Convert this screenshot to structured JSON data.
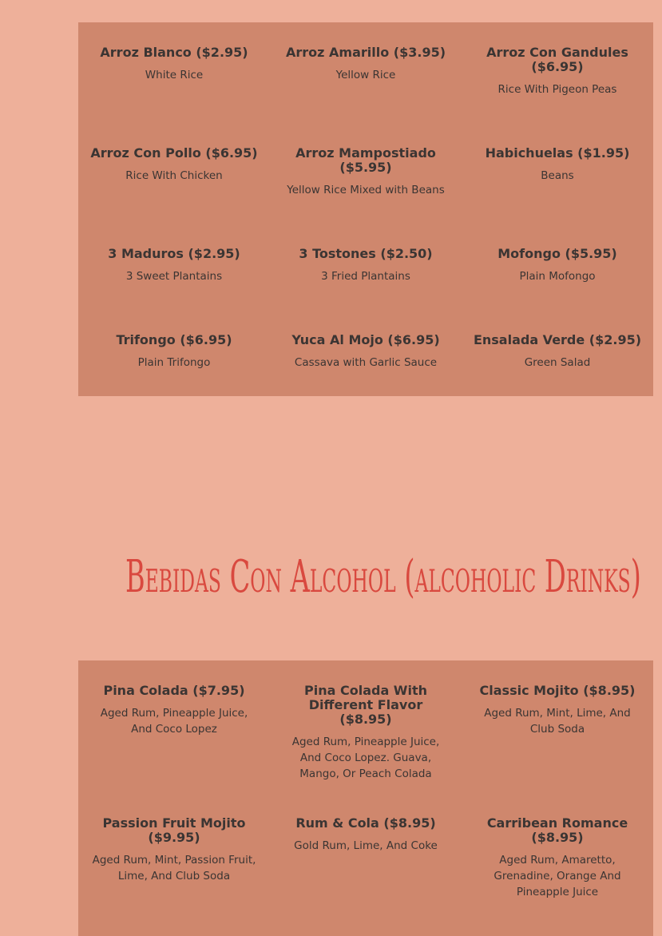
{
  "sections": [
    {
      "items": [
        {
          "name": "Arroz Blanco ($2.95)",
          "description": "White Rice"
        },
        {
          "name": "Arroz Amarillo ($3.95)",
          "description": "Yellow Rice"
        },
        {
          "name": "Arroz Con Gandules ($6.95)",
          "description": "Rice With Pigeon Peas"
        },
        {
          "name": "Arroz Con Pollo ($6.95)",
          "description": "Rice With Chicken"
        },
        {
          "name": "Arroz Mampostiado ($5.95)",
          "description": "Yellow Rice Mixed with Beans"
        },
        {
          "name": "Habichuelas ($1.95)",
          "description": "Beans"
        },
        {
          "name": "3 Maduros ($2.95)",
          "description": "3 Sweet Plantains"
        },
        {
          "name": "3 Tostones ($2.50)",
          "description": "3 Fried Plantains"
        },
        {
          "name": "Mofongo ($5.95)",
          "description": "Plain Mofongo"
        },
        {
          "name": "Trifongo ($6.95)",
          "description": "Plain Trifongo"
        },
        {
          "name": "Yuca Al Mojo ($6.95)",
          "description": "Cassava with Garlic Sauce"
        },
        {
          "name": "Ensalada Verde ($2.95)",
          "description": "Green Salad"
        }
      ]
    },
    {
      "heading": "Bebidas Con Alcohol (alcoholic Drinks)",
      "items": [
        {
          "name": "Pina Colada ($7.95)",
          "description": "Aged Rum, Pineapple Juice, And Coco Lopez"
        },
        {
          "name": "Pina Colada With Different Flavor ($8.95)",
          "description": "Aged Rum, Pineapple Juice, And Coco Lopez. Guava, Mango, Or Peach Colada"
        },
        {
          "name": "Classic Mojito ($8.95)",
          "description": "Aged Rum, Mint, Lime, And Club Soda"
        },
        {
          "name": "Passion Fruit Mojito ($9.95)",
          "description": "Aged Rum, Mint, Passion Fruit, Lime, And Club Soda"
        },
        {
          "name": "Rum & Cola ($8.95)",
          "description": "Gold Rum, Lime, And Coke"
        },
        {
          "name": "Carribean Romance ($8.95)",
          "description": "Aged Rum, Amaretto, Grenadine, Orange And Pineapple Juice"
        }
      ]
    }
  ]
}
